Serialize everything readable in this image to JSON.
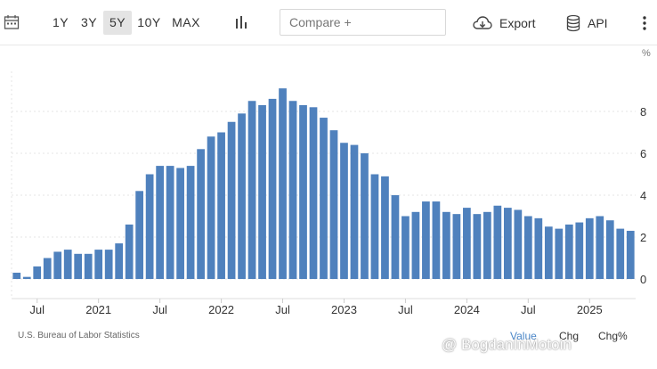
{
  "toolbar": {
    "ranges": [
      "1Y",
      "3Y",
      "5Y",
      "10Y",
      "MAX"
    ],
    "active_range": "5Y",
    "compare_placeholder": "Compare +",
    "export_label": "Export",
    "api_label": "API"
  },
  "unit_label": "%",
  "source": "U.S. Bureau of Labor Statistics",
  "view_tabs": [
    "Value",
    "Chg",
    "Chg%"
  ],
  "active_view": "Value",
  "watermark": "@ BogdanInMotoin",
  "colors": {
    "bar": "#4f81bd",
    "grid": "#e6e6e6",
    "active_tab": "#4a86c8"
  },
  "icons": [
    "calendar-icon",
    "bar-chart-icon",
    "cloud-download-icon",
    "database-icon",
    "kebab-menu-icon"
  ],
  "chart_data": {
    "type": "bar",
    "ylim": [
      -1.2,
      9.6
    ],
    "yticks": [
      0,
      2,
      4,
      6,
      8
    ],
    "x_tick_labels": [
      {
        "label": "Jul",
        "index": 2
      },
      {
        "label": "2021",
        "index": 8
      },
      {
        "label": "Jul",
        "index": 14
      },
      {
        "label": "2022",
        "index": 20
      },
      {
        "label": "Jul",
        "index": 26
      },
      {
        "label": "2023",
        "index": 32
      },
      {
        "label": "Jul",
        "index": 38
      },
      {
        "label": "2024",
        "index": 44
      },
      {
        "label": "Jul",
        "index": 50
      },
      {
        "label": "2025",
        "index": 56
      }
    ],
    "values": [
      0.3,
      0.1,
      0.6,
      1.0,
      1.3,
      1.4,
      1.2,
      1.2,
      1.4,
      1.4,
      1.7,
      2.6,
      4.2,
      5.0,
      5.4,
      5.4,
      5.3,
      5.4,
      6.2,
      6.8,
      7.0,
      7.5,
      7.9,
      8.5,
      8.3,
      8.6,
      9.1,
      8.5,
      8.3,
      8.2,
      7.7,
      7.1,
      6.5,
      6.4,
      6.0,
      5.0,
      4.9,
      4.0,
      3.0,
      3.2,
      3.7,
      3.7,
      3.2,
      3.1,
      3.4,
      3.1,
      3.2,
      3.5,
      3.4,
      3.3,
      3.0,
      2.9,
      2.5,
      2.4,
      2.6,
      2.7,
      2.9,
      3.0,
      2.8,
      2.4,
      2.3
    ]
  }
}
